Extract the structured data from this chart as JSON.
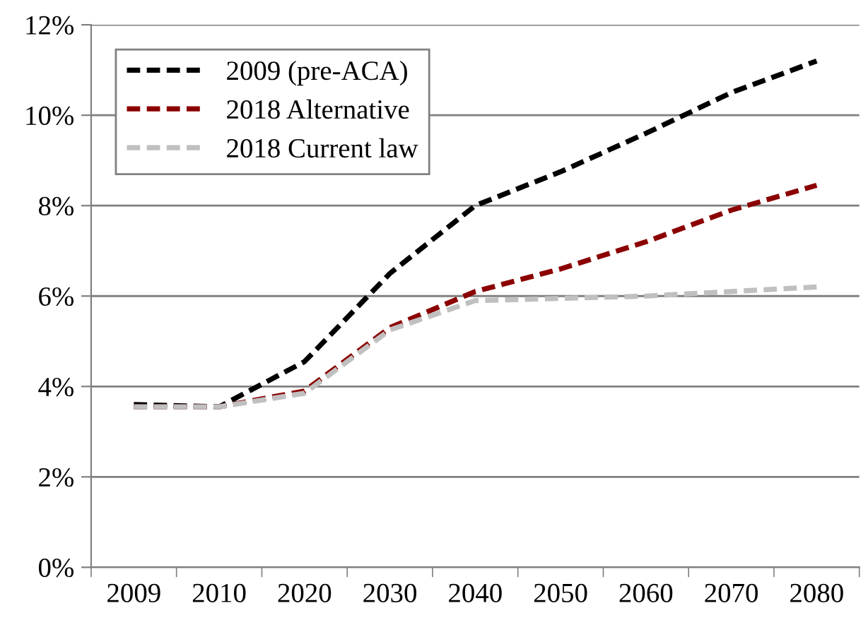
{
  "chart_data": {
    "type": "line",
    "categories": [
      "2009",
      "2010",
      "2020",
      "2030",
      "2040",
      "2050",
      "2060",
      "2070",
      "2080"
    ],
    "series": [
      {
        "name": "2009 (pre-ACA)",
        "color": "#000000",
        "values": [
          3.6,
          3.55,
          4.55,
          6.5,
          8.0,
          8.75,
          9.6,
          10.5,
          11.2
        ]
      },
      {
        "name": "2018 Alternative",
        "color": "#8b0000",
        "values": [
          3.55,
          3.55,
          3.9,
          5.3,
          6.1,
          6.6,
          7.2,
          7.9,
          8.45
        ]
      },
      {
        "name": "2018 Current law",
        "color": "#c0c0c0",
        "values": [
          3.55,
          3.55,
          3.85,
          5.25,
          5.9,
          5.95,
          6.0,
          6.1,
          6.2
        ]
      }
    ],
    "ylim": [
      0,
      12
    ],
    "yticks": [
      {
        "value": 0,
        "label": "0%"
      },
      {
        "value": 2,
        "label": "2%"
      },
      {
        "value": 4,
        "label": "4%"
      },
      {
        "value": 6,
        "label": "6%"
      },
      {
        "value": 8,
        "label": "8%"
      },
      {
        "value": 10,
        "label": "10%"
      },
      {
        "value": 12,
        "label": "12%"
      }
    ],
    "grid": "y",
    "legend": "top left",
    "line_style": "dashed",
    "marker": "none"
  }
}
